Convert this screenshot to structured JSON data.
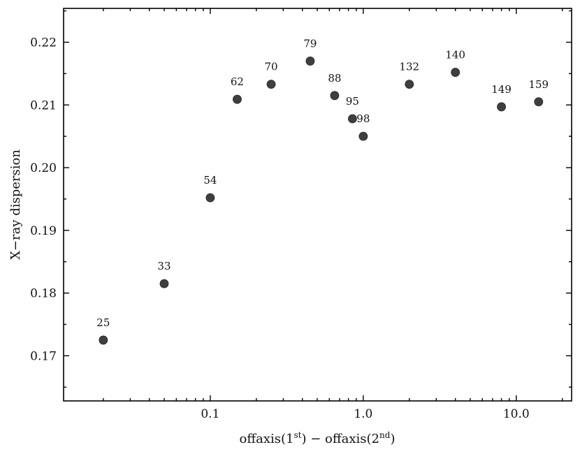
{
  "chart_data": {
    "type": "scatter",
    "title": "",
    "xlabel": "offaxis(1st) − offaxis(2nd)",
    "xlabel_parts": {
      "a": "offaxis(1",
      "sup1": "st",
      "b": ") − offaxis(2",
      "sup2": "nd",
      "c": ")"
    },
    "ylabel": "X−ray dispersion",
    "xscale": "log",
    "xlim": [
      0.011,
      23
    ],
    "ylim": [
      0.1628,
      0.2254
    ],
    "xticks": [
      0.1,
      1.0,
      10.0
    ],
    "xtick_labels": [
      "0.1",
      "1.0",
      "10.0"
    ],
    "yticks": [
      0.17,
      0.18,
      0.19,
      0.2,
      0.21,
      0.22
    ],
    "ytick_labels": [
      "0.17",
      "0.18",
      "0.19",
      "0.20",
      "0.21",
      "0.22"
    ],
    "grid": false,
    "marker_color": "#3f3f3f",
    "points": [
      {
        "x": 0.02,
        "y": 0.1725,
        "label": "25"
      },
      {
        "x": 0.05,
        "y": 0.1815,
        "label": "33"
      },
      {
        "x": 0.1,
        "y": 0.1952,
        "label": "54"
      },
      {
        "x": 0.15,
        "y": 0.2109,
        "label": "62"
      },
      {
        "x": 0.25,
        "y": 0.2133,
        "label": "70"
      },
      {
        "x": 0.45,
        "y": 0.217,
        "label": "79"
      },
      {
        "x": 0.65,
        "y": 0.2115,
        "label": "88"
      },
      {
        "x": 0.85,
        "y": 0.2078,
        "label": "95"
      },
      {
        "x": 1.0,
        "y": 0.205,
        "label": "98"
      },
      {
        "x": 2.0,
        "y": 0.2133,
        "label": "132"
      },
      {
        "x": 4.0,
        "y": 0.2152,
        "label": "140"
      },
      {
        "x": 8.0,
        "y": 0.2097,
        "label": "149"
      },
      {
        "x": 14.0,
        "y": 0.2105,
        "label": "159"
      }
    ]
  }
}
